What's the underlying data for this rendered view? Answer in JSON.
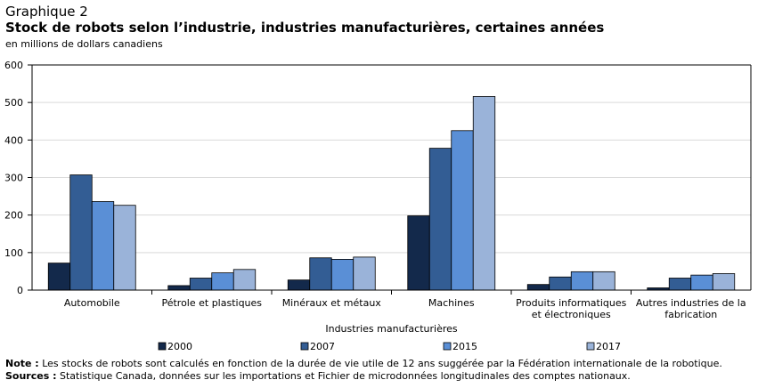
{
  "header": {
    "label": "Graphique  2",
    "title": "Stock de robots selon l’industrie, industries manufacturières, certaines années",
    "unit": "en millions de dollars canadiens"
  },
  "colors": {
    "2000": "#13294b",
    "2007": "#335d94",
    "2015": "#5a8fd6",
    "2017": "#9ab3d9",
    "grid": "#d9d9d9",
    "axis": "#000000"
  },
  "chart_data": {
    "type": "bar",
    "title": "Stock de robots selon l’industrie, industries manufacturières, certaines années",
    "xlabel": "Industries manufacturières",
    "ylabel": "en millions de dollars canadiens",
    "ylim": [
      0,
      600
    ],
    "yticks": [
      0,
      100,
      200,
      300,
      400,
      500,
      600
    ],
    "grid": true,
    "legend_position": "bottom",
    "categories": [
      [
        "Automobile"
      ],
      [
        "Pétrole et plastiques"
      ],
      [
        "Minéraux et métaux"
      ],
      [
        "Machines"
      ],
      [
        "Produits informatiques",
        "et électroniques"
      ],
      [
        "Autres industries de la",
        "fabrication"
      ]
    ],
    "series": [
      {
        "name": "2000",
        "color": "#13294b",
        "values": [
          72,
          12,
          27,
          198,
          15,
          6
        ]
      },
      {
        "name": "2007",
        "color": "#335d94",
        "values": [
          307,
          32,
          86,
          378,
          35,
          32
        ]
      },
      {
        "name": "2015",
        "color": "#5a8fd6",
        "values": [
          236,
          46,
          82,
          425,
          49,
          40
        ]
      },
      {
        "name": "2017",
        "color": "#9ab3d9",
        "values": [
          226,
          55,
          88,
          516,
          49,
          44
        ]
      }
    ]
  },
  "footnotes": {
    "note_label": "Note :",
    "note_text": " Les stocks de robots sont calculés en fonction de la durée de vie utile de 12 ans suggérée par la Fédération internationale de la robotique.",
    "source_label": "Sources :",
    "source_text": " Statistique Canada, données sur les importations et Fichier de microdonnées longitudinales des comptes nationaux."
  }
}
